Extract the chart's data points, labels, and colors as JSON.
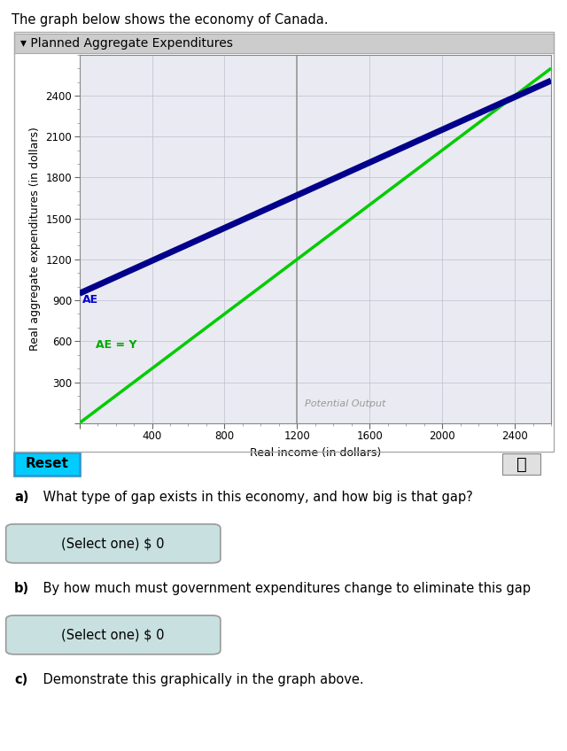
{
  "title_above": "The graph below shows the economy of Canada.",
  "chart_title": "▾ Planned Aggregate Expenditures",
  "xlabel": "Real income (in dollars)",
  "ylabel": "Real aggregate expenditures (in dollars)",
  "xlim": [
    0,
    2600
  ],
  "ylim": [
    0,
    2700
  ],
  "xticks": [
    0,
    400,
    800,
    1200,
    1600,
    2000,
    2400
  ],
  "yticks": [
    0,
    300,
    600,
    900,
    1200,
    1500,
    1800,
    2100,
    2400
  ],
  "ae_intercept": 950,
  "ae_slope": 0.6,
  "ae_color": "#00008B",
  "ae_label": "AE",
  "ae_label_color": "#0000CC",
  "aeqy_slope": 1.0,
  "aeqy_color": "#00CC00",
  "aeqy_label": "AE = Y",
  "aeqy_label_color": "#00AA00",
  "potential_output_x": 1200,
  "potential_output_label": "Potential Output",
  "potential_output_color": "#999999",
  "potential_output_lw": 1.2,
  "plot_bg_color": "#EAEAF2",
  "grid_color": "#C0C0CC",
  "grid_lw": 0.5,
  "ae_lw": 5.0,
  "aeqy_lw": 2.5,
  "header_bg": "#CCCCCC",
  "outer_border_color": "#AAAAAA",
  "reset_label": "Reset",
  "reset_bg": "#00CCFF",
  "question_a_bold": "a)",
  "question_a_rest": " What type of gap exists in this economy, and how big is that gap?",
  "question_b_bold": "b)",
  "question_b_rest": " By how much must government expenditures change to eliminate this gap",
  "question_c_bold": "c)",
  "question_c_rest": " Demonstrate this graphically in the graph above.",
  "select_label": "(Select one) $ 0",
  "select_bg": "#C8E0E0",
  "select_border": "#999999"
}
